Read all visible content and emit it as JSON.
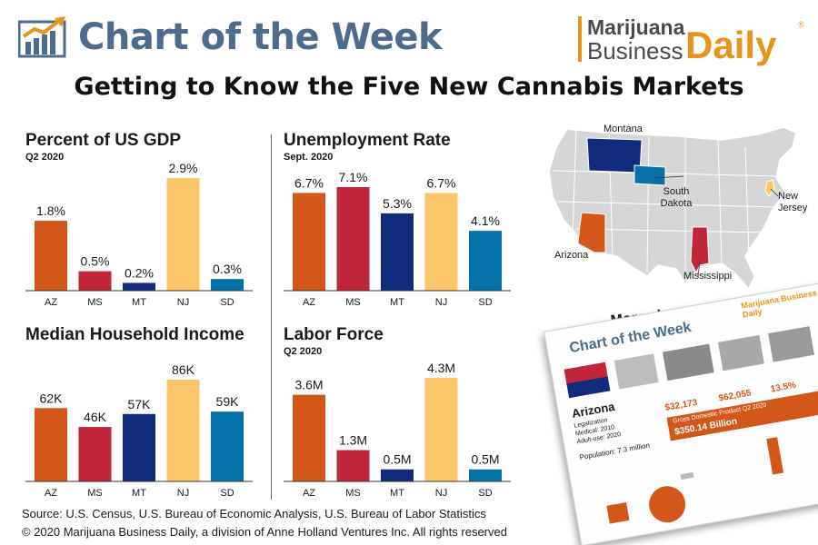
{
  "header": {
    "title": "Chart of the Week",
    "brand_line1": "Marijuana",
    "brand_line2": "Business",
    "brand_daily": "Daily",
    "brand_reg": "®"
  },
  "subtitle": "Getting to Know the Five New Cannabis Markets",
  "colors": {
    "AZ": "#d4571a",
    "MS": "#c1253a",
    "MT": "#112a7c",
    "NJ": "#fcc66a",
    "SD": "#0571a8",
    "title_blue": "#4d6b8c",
    "brand_orange": "#e8941a"
  },
  "chart_data": [
    {
      "type": "bar",
      "title": "Percent of US GDP",
      "subtitle": "Q2 2020",
      "categories": [
        "AZ",
        "MS",
        "MT",
        "NJ",
        "SD"
      ],
      "values": [
        1.8,
        0.5,
        0.2,
        2.9,
        0.3
      ],
      "labels": [
        "1.8%",
        "0.5%",
        "0.2%",
        "2.9%",
        "0.3%"
      ],
      "ylim": [
        0,
        2.9
      ]
    },
    {
      "type": "bar",
      "title": "Unemployment Rate",
      "subtitle": "Sept. 2020",
      "categories": [
        "AZ",
        "MS",
        "MT",
        "NJ",
        "SD"
      ],
      "values": [
        6.7,
        7.1,
        5.3,
        6.7,
        4.1
      ],
      "labels": [
        "6.7%",
        "7.1%",
        "5.3%",
        "6.7%",
        "4.1%"
      ],
      "ylim": [
        0,
        7.1
      ]
    },
    {
      "type": "bar",
      "title": "Median Household Income",
      "subtitle": "",
      "categories": [
        "AZ",
        "MS",
        "MT",
        "NJ",
        "SD"
      ],
      "values": [
        62,
        46,
        57,
        86,
        59
      ],
      "labels": [
        "62K",
        "46K",
        "57K",
        "86K",
        "59K"
      ],
      "ylim": [
        0,
        86
      ]
    },
    {
      "type": "bar",
      "title": "Labor Force",
      "subtitle": "Q2 2020",
      "categories": [
        "AZ",
        "MS",
        "MT",
        "NJ",
        "SD"
      ],
      "values": [
        3.6,
        1.3,
        0.5,
        4.3,
        0.5
      ],
      "labels": [
        "3.6M",
        "1.3M",
        "0.5M",
        "4.3M",
        "0.5M"
      ],
      "ylim": [
        0,
        4.3
      ]
    }
  ],
  "map": {
    "labels": {
      "montana": "Montana",
      "south_dakota": "South Dakota",
      "new_jersey": "New Jersey",
      "arizona": "Arizona",
      "mississippi": "Mississippi"
    }
  },
  "promo": {
    "text": "More charts inside.",
    "thumb_title": "Chart of the Week",
    "thumb_state": "Arizona",
    "thumb_brand": "Marijuana Business Daily",
    "thumb_legalization": "Legalization",
    "thumb_medical": "Medical: 2010",
    "thumb_adult": "Adult-use: 2020",
    "thumb_population": "Population: 7.3 million",
    "thumb_stat1": "$32,173",
    "thumb_stat2": "$62,055",
    "thumb_stat3": "13.5%",
    "thumb_gdp": "Gross Domestic Product Q2 2020",
    "thumb_gdp_value": "$350.14 Billion"
  },
  "footer": {
    "source": "Source:  U.S. Census, U.S. Bureau of Economic Analysis, U.S. Bureau of Labor Statistics",
    "copyright": "© 2020 Marijuana Business Daily, a division of Anne Holland Ventures Inc. All rights reserved"
  }
}
